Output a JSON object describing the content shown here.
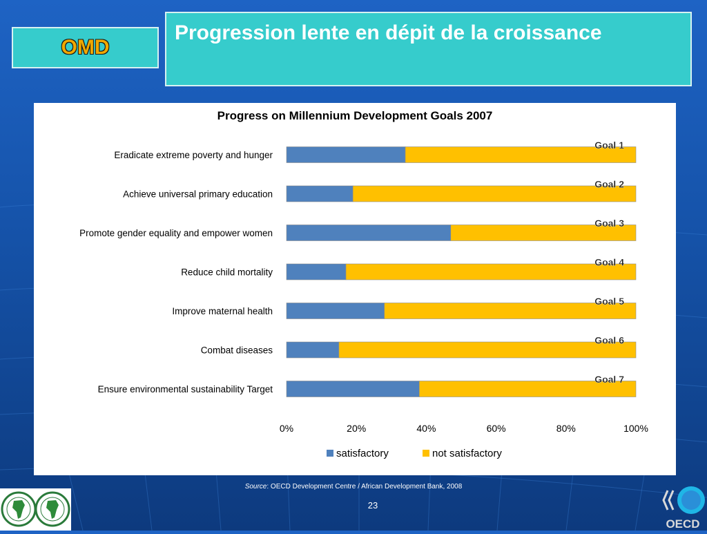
{
  "slide": {
    "tag": "OMD",
    "title": "Progression lente en dépit de la croissance",
    "source_label": "Source",
    "source_text": ": OECD Development Centre / African Development Bank, 2008",
    "page_number": "23",
    "logo_right_text": "OECD"
  },
  "colors": {
    "satisfactory": "#4f81bd",
    "not_satisfactory": "#ffc000",
    "title_box": "#36cccc",
    "background": "#1a5bb8"
  },
  "chart_data": {
    "type": "bar",
    "orientation": "horizontal",
    "stacked": "percent",
    "title": "Progress on Millennium Development Goals 2007",
    "categories": [
      "Eradicate extreme poverty and hunger",
      "Achieve universal primary education",
      "Promote gender equality and empower women",
      "Reduce child mortality",
      "Improve maternal health",
      "Combat diseases",
      "Ensure environmental sustainability Target"
    ],
    "goal_labels": [
      "Goal 1",
      "Goal 2",
      "Goal 3",
      "Goal 4",
      "Goal 5",
      "Goal 6",
      "Goal 7"
    ],
    "series": [
      {
        "name": "satisfactory",
        "values": [
          34,
          19,
          47,
          17,
          28,
          15,
          38
        ]
      },
      {
        "name": "not satisfactory",
        "values": [
          66,
          81,
          53,
          83,
          72,
          85,
          62
        ]
      }
    ],
    "x_ticks": [
      "0%",
      "20%",
      "40%",
      "60%",
      "80%",
      "100%"
    ],
    "xlim": [
      0,
      100
    ],
    "grid": false,
    "legend_position": "bottom"
  }
}
